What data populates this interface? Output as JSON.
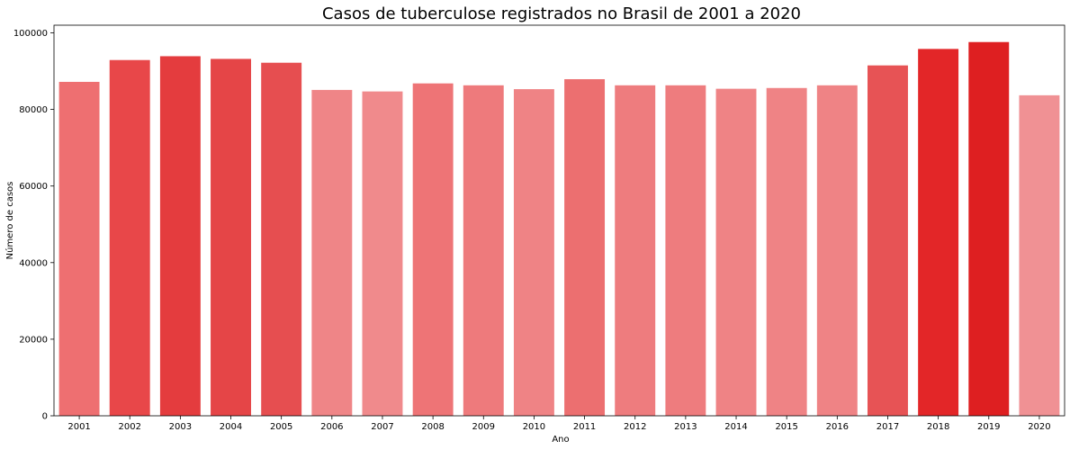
{
  "chart_data": {
    "type": "bar",
    "title": "Casos de tuberculose registrados no Brasil de 2001 a 2020",
    "xlabel": "Ano",
    "ylabel": "Número de casos",
    "ylim": [
      0,
      102000
    ],
    "yticks": [
      0,
      20000,
      40000,
      60000,
      80000,
      100000
    ],
    "grid": false,
    "legend": "none",
    "categories": [
      "2001",
      "2002",
      "2003",
      "2004",
      "2005",
      "2006",
      "2007",
      "2008",
      "2009",
      "2010",
      "2011",
      "2012",
      "2013",
      "2014",
      "2015",
      "2016",
      "2017",
      "2018",
      "2019",
      "2020"
    ],
    "values": [
      87200,
      92900,
      93900,
      93200,
      92200,
      85100,
      84700,
      86800,
      86300,
      85300,
      87900,
      86300,
      86300,
      85400,
      85600,
      86300,
      91500,
      95800,
      97600,
      83700
    ],
    "colors": [
      "#ee6f71",
      "#e84749",
      "#e43c3e",
      "#e54547",
      "#e64e50",
      "#ef8587",
      "#f08a8c",
      "#ee7476",
      "#ee7a7c",
      "#ef8385",
      "#ec6f70",
      "#ee7c7e",
      "#ee7c7e",
      "#ef8385",
      "#ef8385",
      "#ef8385",
      "#e75355",
      "#e32628",
      "#de1f21",
      "#f09194"
    ]
  }
}
